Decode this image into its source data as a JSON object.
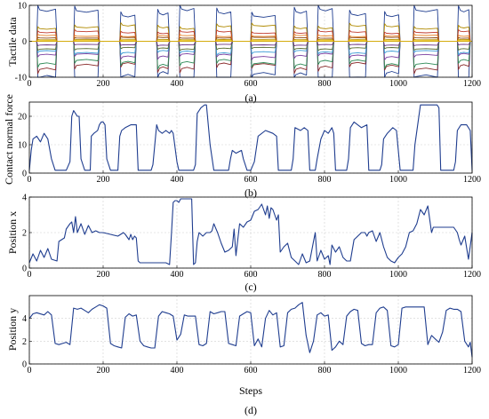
{
  "chart_data": [
    {
      "type": "line",
      "ylabel": "Tactile data",
      "caption": "(a)",
      "xlim": [
        0,
        1200
      ],
      "ylim": [
        -10,
        10
      ],
      "x_ticks": [
        0,
        200,
        400,
        600,
        800,
        1000,
        1200
      ],
      "y_ticks": [
        -10,
        0,
        10
      ],
      "grid": true,
      "contacts": [
        [
          20,
          75
        ],
        [
          120,
          190
        ],
        [
          245,
          290
        ],
        [
          345,
          380
        ],
        [
          405,
          450
        ],
        [
          505,
          550
        ],
        [
          600,
          670
        ],
        [
          715,
          755
        ],
        [
          780,
          825
        ],
        [
          865,
          915
        ],
        [
          960,
          1005
        ],
        [
          1040,
          1110
        ],
        [
          1160,
          1195
        ]
      ],
      "series": [
        {
          "amplitude": -10,
          "color": "#1f3d8f"
        },
        {
          "amplitude": 8,
          "color": "#1f3d8f"
        },
        {
          "amplitude": -7,
          "color": "#8a2a2a"
        },
        {
          "amplitude": -6,
          "color": "#2e8b57"
        },
        {
          "amplitude": -4,
          "color": "#7b3fa0"
        },
        {
          "amplitude": 4,
          "color": "#b08a00"
        },
        {
          "amplitude": -3,
          "color": "#3a9bd5"
        },
        {
          "amplitude": 2.5,
          "color": "#c0392b"
        },
        {
          "amplitude": -2,
          "color": "#556b2f"
        },
        {
          "amplitude": 1.5,
          "color": "#e67e22"
        },
        {
          "amplitude": -1,
          "color": "#6c3483"
        },
        {
          "amplitude": 1,
          "color": "#8b4513"
        },
        {
          "amplitude": 0.5,
          "color": "#b7950b"
        },
        {
          "amplitude": 0.2,
          "color": "#f1c40f"
        },
        {
          "amplitude": 0,
          "color": "#d4ac0d"
        }
      ]
    },
    {
      "type": "line",
      "ylabel": "Contact normal force",
      "caption": "(b)",
      "xlim": [
        0,
        1200
      ],
      "ylim": [
        0,
        25
      ],
      "x_ticks": [
        0,
        200,
        400,
        600,
        800,
        1000,
        1200
      ],
      "y_ticks": [
        0,
        10,
        20
      ],
      "grid": true,
      "series": [
        {
          "color": "#1f3d8f",
          "x": [
            0,
            5,
            10,
            20,
            30,
            40,
            50,
            60,
            70,
            75,
            80,
            100,
            110,
            115,
            120,
            125,
            130,
            135,
            140,
            150,
            165,
            168,
            175,
            185,
            190,
            195,
            200,
            205,
            210,
            220,
            240,
            245,
            250,
            260,
            275,
            290,
            295,
            310,
            330,
            335,
            345,
            350,
            360,
            370,
            380,
            385,
            390,
            400,
            405,
            410,
            420,
            435,
            445,
            450,
            455,
            465,
            475,
            480,
            490,
            500,
            505,
            510,
            520,
            530,
            540,
            545,
            550,
            560,
            575,
            580,
            590,
            600,
            610,
            620,
            640,
            660,
            670,
            675,
            690,
            710,
            715,
            720,
            735,
            745,
            755,
            760,
            775,
            780,
            790,
            800,
            810,
            820,
            825,
            830,
            850,
            860,
            865,
            870,
            880,
            900,
            915,
            920,
            950,
            955,
            960,
            970,
            985,
            995,
            1005,
            1010,
            1030,
            1035,
            1040,
            1045,
            1060,
            1080,
            1095,
            1105,
            1110,
            1115,
            1150,
            1155,
            1160,
            1170,
            1185,
            1195,
            1200
          ],
          "y": [
            1,
            8,
            12,
            13,
            11,
            14,
            12,
            5,
            1,
            1,
            1,
            1,
            4,
            20,
            22,
            21,
            20,
            20,
            5,
            1,
            1,
            13,
            14,
            15,
            17,
            18,
            18,
            17,
            5,
            1,
            1,
            13,
            15,
            16,
            17,
            17,
            1,
            1,
            1,
            3,
            17,
            15,
            14,
            15,
            14,
            15,
            14,
            4,
            1,
            1,
            1,
            1,
            1,
            3,
            21,
            23,
            24,
            24,
            10,
            1,
            1,
            1,
            1,
            1,
            1,
            5,
            8,
            7,
            8,
            5,
            1,
            1,
            4,
            13,
            15,
            14,
            13,
            1,
            1,
            1,
            5,
            16,
            15,
            16,
            15,
            1,
            1,
            5,
            12,
            15,
            14,
            16,
            14,
            1,
            1,
            1,
            5,
            16,
            18,
            16,
            17,
            1,
            1,
            3,
            12,
            14,
            16,
            15,
            1,
            1,
            1,
            1,
            1,
            10,
            24,
            24,
            24,
            24,
            23,
            1,
            1,
            4,
            15,
            17,
            17,
            15,
            1
          ]
        }
      ]
    },
    {
      "type": "line",
      "ylabel": "Position x",
      "caption": "(c)",
      "xlim": [
        0,
        1200
      ],
      "ylim": [
        0,
        4
      ],
      "x_ticks": [
        0,
        200,
        400,
        600,
        800,
        1000,
        1200
      ],
      "y_ticks": [
        0,
        2,
        4
      ],
      "grid": true,
      "series": [
        {
          "color": "#1f3d8f",
          "x": [
            0,
            10,
            20,
            30,
            40,
            50,
            60,
            75,
            80,
            95,
            100,
            110,
            115,
            120,
            125,
            130,
            140,
            150,
            160,
            170,
            180,
            190,
            200,
            220,
            240,
            255,
            260,
            270,
            275,
            280,
            285,
            290,
            295,
            300,
            310,
            320,
            330,
            340,
            360,
            370,
            380,
            385,
            390,
            395,
            400,
            405,
            410,
            420,
            430,
            440,
            445,
            450,
            455,
            460,
            470,
            480,
            490,
            495,
            500,
            510,
            520,
            530,
            540,
            550,
            555,
            560,
            570,
            580,
            590,
            600,
            610,
            620,
            630,
            640,
            645,
            650,
            655,
            660,
            670,
            675,
            680,
            690,
            700,
            710,
            720,
            730,
            740,
            750,
            760,
            770,
            775,
            780,
            790,
            800,
            810,
            815,
            820,
            830,
            840,
            850,
            860,
            870,
            880,
            890,
            900,
            910,
            915,
            920,
            930,
            940,
            950,
            960,
            970,
            980,
            990,
            1000,
            1010,
            1020,
            1030,
            1040,
            1050,
            1060,
            1070,
            1080,
            1090,
            1095,
            1100,
            1110,
            1120,
            1130,
            1140,
            1150,
            1160,
            1165,
            1170,
            1180,
            1190,
            1200
          ],
          "y": [
            0.3,
            0.8,
            0.4,
            1.0,
            0.6,
            1.1,
            0.5,
            0.4,
            1.5,
            1.7,
            2.2,
            2.5,
            2.6,
            2.0,
            2.9,
            2.0,
            2.5,
            1.9,
            2.4,
            2.0,
            2.1,
            2.0,
            2.0,
            1.9,
            1.8,
            2.0,
            1.9,
            1.6,
            1.9,
            1.6,
            1.8,
            1.7,
            0.4,
            0.3,
            0.3,
            0.3,
            0.3,
            0.3,
            0.3,
            0.3,
            0.2,
            1.9,
            3.7,
            3.8,
            3.8,
            3.7,
            3.9,
            3.9,
            3.9,
            3.9,
            0.2,
            0.3,
            1.5,
            2.0,
            1.8,
            2.0,
            2.0,
            2.1,
            2.5,
            2.0,
            1.4,
            0.9,
            1.0,
            1.2,
            2.2,
            0.7,
            2.5,
            2.3,
            2.6,
            2.7,
            3.2,
            3.3,
            3.6,
            3.0,
            3.5,
            2.8,
            3.4,
            3.3,
            2.7,
            3.0,
            0.9,
            1.2,
            1.4,
            0.6,
            0.4,
            0.2,
            0.8,
            0.3,
            0.4,
            1.5,
            2.0,
            0.4,
            1.0,
            0.5,
            0.7,
            0.2,
            1.3,
            0.9,
            1.2,
            0.6,
            0.4,
            0.4,
            1.6,
            1.8,
            2.0,
            2.0,
            1.8,
            2.0,
            2.1,
            1.5,
            2.0,
            1.2,
            0.6,
            0.4,
            0.3,
            0.6,
            0.8,
            1.2,
            2.0,
            2.1,
            2.5,
            3.3,
            3.0,
            3.5,
            2.0,
            2.3,
            2.3,
            2.3,
            2.3,
            2.3,
            2.3,
            2.3,
            2.0,
            1.6,
            1.3,
            1.8,
            0.5,
            2.0
          ]
        }
      ]
    },
    {
      "type": "line",
      "ylabel": "Position y",
      "xlabel": "Steps",
      "caption": "(d)",
      "xlim": [
        0,
        1200
      ],
      "ylim": [
        0,
        6
      ],
      "x_ticks": [
        0,
        200,
        400,
        600,
        800,
        1000,
        1200
      ],
      "y_ticks": [
        0,
        2,
        4
      ],
      "grid": true,
      "series": [
        {
          "color": "#1f3d8f",
          "x": [
            0,
            5,
            10,
            20,
            40,
            50,
            60,
            70,
            80,
            90,
            100,
            110,
            120,
            130,
            140,
            150,
            160,
            170,
            180,
            190,
            200,
            210,
            220,
            230,
            240,
            250,
            260,
            270,
            280,
            290,
            300,
            310,
            320,
            330,
            340,
            350,
            360,
            370,
            380,
            390,
            400,
            410,
            420,
            430,
            440,
            450,
            460,
            470,
            480,
            490,
            500,
            510,
            520,
            530,
            540,
            550,
            560,
            570,
            580,
            590,
            600,
            610,
            620,
            630,
            640,
            650,
            660,
            670,
            680,
            690,
            700,
            710,
            720,
            730,
            740,
            750,
            760,
            770,
            780,
            790,
            800,
            810,
            820,
            830,
            840,
            850,
            860,
            870,
            880,
            890,
            900,
            910,
            920,
            930,
            940,
            950,
            960,
            970,
            980,
            990,
            1000,
            1010,
            1020,
            1030,
            1040,
            1050,
            1060,
            1070,
            1080,
            1090,
            1100,
            1110,
            1120,
            1130,
            1140,
            1150,
            1160,
            1170,
            1180,
            1190,
            1195,
            1200
          ],
          "y": [
            4.0,
            4.2,
            4.4,
            4.5,
            4.3,
            4.6,
            4.3,
            1.8,
            1.7,
            1.8,
            1.9,
            1.7,
            4.9,
            4.8,
            4.9,
            4.7,
            4.5,
            4.8,
            5.0,
            5.2,
            5.1,
            4.9,
            1.8,
            1.6,
            1.5,
            1.4,
            4.1,
            4.4,
            4.2,
            4.3,
            2.0,
            1.6,
            1.5,
            1.4,
            1.4,
            4.2,
            4.6,
            4.5,
            4.4,
            4.2,
            2.1,
            2.6,
            4.3,
            4.2,
            4.2,
            4.2,
            1.7,
            1.6,
            1.8,
            4.6,
            4.4,
            4.5,
            4.6,
            4.6,
            1.8,
            1.7,
            1.6,
            4.2,
            4.4,
            4.6,
            4.5,
            1.6,
            2.2,
            1.5,
            4.0,
            4.7,
            4.3,
            4.5,
            1.5,
            1.6,
            4.5,
            4.8,
            4.9,
            5.2,
            5.4,
            2.5,
            1.0,
            2.0,
            4.3,
            4.5,
            4.2,
            4.3,
            1.2,
            1.5,
            2.0,
            1.7,
            4.2,
            4.6,
            4.8,
            4.7,
            1.8,
            1.6,
            1.7,
            1.7,
            4.5,
            4.9,
            5.0,
            4.7,
            1.6,
            1.5,
            1.7,
            4.9,
            5.0,
            5.0,
            5.0,
            5.0,
            5.0,
            5.0,
            1.7,
            2.5,
            2.2,
            1.9,
            2.8,
            4.7,
            4.9,
            4.8,
            4.8,
            4.6,
            2.0,
            1.5,
            1.9,
            0.6
          ]
        }
      ]
    }
  ]
}
